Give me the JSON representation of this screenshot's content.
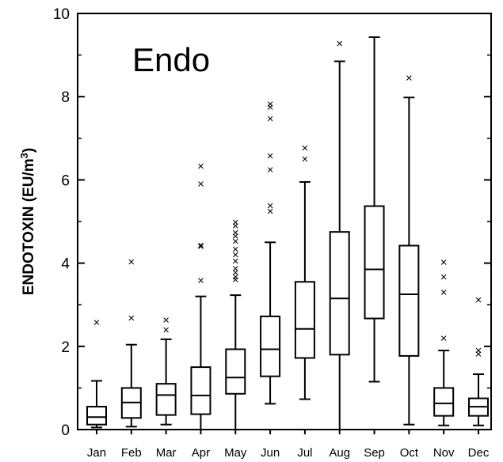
{
  "chart_data": {
    "type": "box",
    "title": "Endo",
    "ylabel": "ENDOTOXIN (EU/m3)",
    "ylabel_main": "ENDOTOXIN (EU/m",
    "ylabel_sup": "3",
    "ylabel_close": ")",
    "xlabel": "",
    "ylim": [
      0,
      10
    ],
    "yticks": [
      0,
      2,
      4,
      6,
      8,
      10
    ],
    "ytick_labels": [
      "0",
      "2",
      "4",
      "6",
      "8",
      "10"
    ],
    "grid": false,
    "outlier_marker": "×",
    "categories": [
      "Jan",
      "Feb",
      "Mar",
      "Apr",
      "May",
      "Jun",
      "Jul",
      "Aug",
      "Sep",
      "Oct",
      "Nov",
      "Dec"
    ],
    "boxes": [
      {
        "whisker_low": 0.05,
        "q1": 0.12,
        "median": 0.3,
        "q3": 0.55,
        "whisker_high": 1.17,
        "outliers": [
          2.58
        ]
      },
      {
        "whisker_low": 0.07,
        "q1": 0.28,
        "median": 0.65,
        "q3": 1.0,
        "whisker_high": 2.04,
        "outliers": [
          2.68,
          4.03
        ]
      },
      {
        "whisker_low": 0.12,
        "q1": 0.35,
        "median": 0.83,
        "q3": 1.1,
        "whisker_high": 2.17,
        "outliers": [
          2.4,
          2.63
        ]
      },
      {
        "whisker_low": 0.0,
        "q1": 0.37,
        "median": 0.82,
        "q3": 1.5,
        "whisker_high": 3.2,
        "outliers": [
          3.58,
          4.4,
          4.43,
          5.9,
          6.33
        ]
      },
      {
        "whisker_low": 0.0,
        "q1": 0.86,
        "median": 1.25,
        "q3": 1.93,
        "whisker_high": 3.23,
        "outliers": [
          3.6,
          3.67,
          3.77,
          3.87,
          4.05,
          4.2,
          4.33,
          4.52,
          4.65,
          4.73,
          4.9,
          4.98
        ]
      },
      {
        "whisker_low": 0.62,
        "q1": 1.28,
        "median": 1.93,
        "q3": 2.72,
        "whisker_high": 4.5,
        "outliers": [
          5.25,
          5.38,
          6.25,
          6.58,
          7.47,
          7.75,
          7.82
        ]
      },
      {
        "whisker_low": 0.73,
        "q1": 1.72,
        "median": 2.42,
        "q3": 3.55,
        "whisker_high": 5.95,
        "outliers": [
          6.5,
          6.77
        ]
      },
      {
        "whisker_low": 0.0,
        "q1": 1.8,
        "median": 3.15,
        "q3": 4.75,
        "whisker_high": 8.85,
        "outliers": [
          9.28
        ]
      },
      {
        "whisker_low": 1.15,
        "q1": 2.67,
        "median": 3.85,
        "q3": 5.37,
        "whisker_high": 9.43,
        "outliers": []
      },
      {
        "whisker_low": 0.12,
        "q1": 1.77,
        "median": 3.25,
        "q3": 4.42,
        "whisker_high": 7.98,
        "outliers": [
          8.45
        ]
      },
      {
        "whisker_low": 0.1,
        "q1": 0.33,
        "median": 0.63,
        "q3": 1.0,
        "whisker_high": 1.9,
        "outliers": [
          2.2,
          3.3,
          3.67,
          4.02
        ]
      },
      {
        "whisker_low": 0.1,
        "q1": 0.33,
        "median": 0.55,
        "q3": 0.75,
        "whisker_high": 1.33,
        "outliers": [
          1.82,
          1.9,
          3.12
        ]
      }
    ]
  }
}
